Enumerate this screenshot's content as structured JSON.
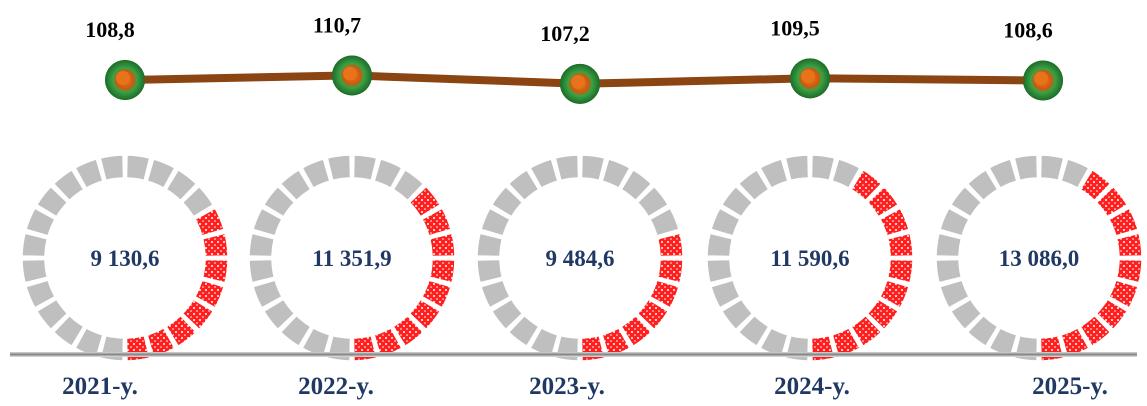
{
  "chart_data": {
    "type": "line",
    "categories": [
      "2021-y.",
      "2022-y.",
      "2023-y.",
      "2024-y.",
      "2025-y."
    ],
    "series": [
      {
        "values": [
          108.8,
          110.7,
          107.2,
          109.5,
          108.6
        ],
        "labels": [
          "108,8",
          "110,7",
          "107,2",
          "109,5",
          "108,6"
        ]
      }
    ],
    "rings": {
      "type": "pie",
      "values_label": [
        "9 130,6",
        "11 351,9",
        "9 484,6",
        "11 590,6",
        "13 086,0"
      ],
      "values": [
        9130.6,
        11351.9,
        9484.6,
        11590.6,
        13086.0
      ],
      "filled_fraction": [
        0.33,
        0.37,
        0.3,
        0.4,
        0.41
      ]
    }
  },
  "colors": {
    "line": "#8b4513",
    "marker_outer": "#2e8b3a",
    "marker_inner": "#e8731a",
    "ring_filled": "#ff1f1f",
    "ring_empty": "#bfbfbf",
    "label_blue": "#1f3864",
    "baseline": "#999999"
  }
}
